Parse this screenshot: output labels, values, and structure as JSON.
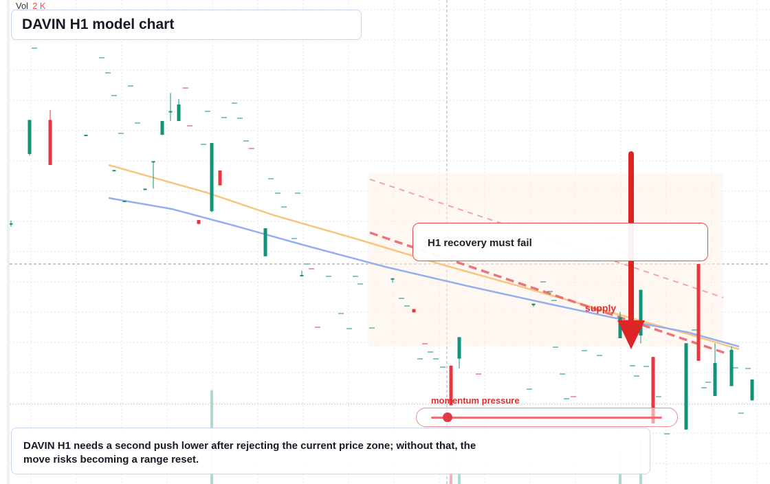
{
  "title": "DAVIN H1 model chart",
  "volume_legend": {
    "label": "Vol",
    "value": "2 K"
  },
  "callout": {
    "text": "H1 recovery must fail"
  },
  "supply_label": "supply",
  "momentum": {
    "label": "momentum pressure",
    "level": 0.06
  },
  "note": "DAVIN H1 needs a second push lower after rejecting the current price zone; without that, the move risks becoming a range reset.",
  "colors": {
    "up": "#11927a",
    "down": "#e8363f",
    "ma_fast": "#f7c57d",
    "ma_slow": "#94aef0",
    "trend": "#e8676d",
    "arrow": "#dc2626",
    "zone": "#fdf1e8"
  },
  "icons": {
    "down_arrow": "down-arrow-icon"
  },
  "chart_data": {
    "type": "candlestick",
    "title": "DAVIN H1 model chart",
    "xlabel": "",
    "ylabel": "",
    "grid": true,
    "series_colors": {
      "up": "#11927a",
      "down": "#e8363f"
    },
    "candles": [
      {
        "x": 16,
        "o": 47.3,
        "h": 47.9,
        "l": 46.8,
        "c": 47.4,
        "vol": 0
      },
      {
        "x": 43,
        "o": 60.0,
        "h": 66.2,
        "l": 59.7,
        "c": 66.2,
        "vol": 0
      },
      {
        "x": 73,
        "o": 66.2,
        "h": 68.0,
        "l": 58.0,
        "c": 58.0,
        "vol": 0
      },
      {
        "x": 125,
        "o": 63.5,
        "h": 63.5,
        "l": 63.5,
        "c": 63.5,
        "vol": 0
      },
      {
        "x": 166,
        "o": 57.1,
        "h": 57.1,
        "l": 57.1,
        "c": 57.1,
        "vol": 0
      },
      {
        "x": 181,
        "o": 51.5,
        "h": 51.5,
        "l": 51.5,
        "c": 51.5,
        "vol": 0
      },
      {
        "x": 211,
        "o": 53.7,
        "h": 53.7,
        "l": 53.7,
        "c": 53.7,
        "vol": 0
      },
      {
        "x": 223,
        "o": 58.5,
        "h": 58.6,
        "l": 53.7,
        "c": 58.7,
        "vol": 0
      },
      {
        "x": 236,
        "o": 63.5,
        "h": 66.0,
        "l": 63.4,
        "c": 66.0,
        "vol": 0
      },
      {
        "x": 248,
        "o": 67.6,
        "h": 71.1,
        "l": 66.0,
        "c": 67.8,
        "vol": 0
      },
      {
        "x": 260,
        "o": 66.0,
        "h": 70.0,
        "l": 66.0,
        "c": 69.0,
        "vol": 0
      },
      {
        "x": 289,
        "o": 48.0,
        "h": 48.0,
        "l": 47.2,
        "c": 47.3,
        "vol": 0
      },
      {
        "x": 308,
        "o": 49.6,
        "h": 62.0,
        "l": 49.4,
        "c": 62.0,
        "vol": 0.35
      },
      {
        "x": 320,
        "o": 57.0,
        "h": 57.0,
        "l": 54.3,
        "c": 54.3,
        "vol": 0
      },
      {
        "x": 386,
        "o": 41.4,
        "h": 46.5,
        "l": 41.4,
        "c": 46.5,
        "vol": 0
      },
      {
        "x": 439,
        "o": 38.0,
        "h": 38.8,
        "l": 37.9,
        "c": 38.0,
        "vol": 0
      },
      {
        "x": 571,
        "o": 37.4,
        "h": 37.4,
        "l": 36.6,
        "c": 37.4,
        "vol": 0
      },
      {
        "x": 602,
        "o": 31.8,
        "h": 31.8,
        "l": 31.2,
        "c": 31.2,
        "vol": 0
      },
      {
        "x": 656,
        "o": 21.5,
        "h": 21.6,
        "l": 14.4,
        "c": 14.3,
        "vol": 0.2
      },
      {
        "x": 668,
        "o": 22.8,
        "h": 26.7,
        "l": 21.0,
        "c": 26.7,
        "vol": 0.07
      },
      {
        "x": 776,
        "o": 32.5,
        "h": 32.5,
        "l": 32.2,
        "c": 32.8,
        "vol": 0
      },
      {
        "x": 902,
        "o": 26.5,
        "h": 31.3,
        "l": 26.5,
        "c": 30.3,
        "vol": 0.12
      },
      {
        "x": 932,
        "o": 27.0,
        "h": 35.3,
        "l": 25.6,
        "c": 35.3,
        "vol": 0.16
      },
      {
        "x": 950,
        "o": 23.1,
        "h": 23.1,
        "l": 11.0,
        "c": 11.0,
        "vol": 0
      },
      {
        "x": 998,
        "o": 9.9,
        "h": 25.6,
        "l": 9.9,
        "c": 25.6,
        "vol": 0
      },
      {
        "x": 1016,
        "o": 40.0,
        "h": 40.0,
        "l": 22.4,
        "c": 22.4,
        "vol": 0
      },
      {
        "x": 1040,
        "o": 16.0,
        "h": 25.6,
        "l": 16.0,
        "c": 22.0,
        "vol": 0
      },
      {
        "x": 1064,
        "o": 17.8,
        "h": 25.0,
        "l": 17.8,
        "c": 24.4,
        "vol": 0
      },
      {
        "x": 1094,
        "o": 15.2,
        "h": 19.0,
        "l": 15.2,
        "c": 19.0,
        "vol": 0
      }
    ],
    "moving_averages": [
      {
        "points": [
          [
            158,
            58.0
          ],
          [
            300,
            53.0
          ],
          [
            400,
            48.8
          ],
          [
            520,
            44.5
          ],
          [
            640,
            40.0
          ],
          [
            760,
            35.8
          ],
          [
            880,
            31.5
          ],
          [
            1000,
            27.3
          ],
          [
            1075,
            24.5
          ]
        ]
      },
      {
        "points": [
          [
            158,
            52.0
          ],
          [
            250,
            50.0
          ],
          [
            340,
            47.0
          ],
          [
            440,
            43.5
          ],
          [
            560,
            39.5
          ],
          [
            680,
            36.0
          ],
          [
            800,
            32.7
          ],
          [
            920,
            29.5
          ],
          [
            1000,
            27.6
          ],
          [
            1075,
            25.0
          ]
        ]
      }
    ],
    "trendlines": [
      {
        "points": [
          [
            538,
            55.4
          ],
          [
            1052,
            33.9
          ]
        ],
        "style": "dashed"
      },
      {
        "points": [
          [
            538,
            45.7
          ],
          [
            1055,
            23.8
          ]
        ],
        "style": "dashed-bold"
      }
    ],
    "zone": {
      "x": [
        535,
        1052
      ],
      "y": [
        25.0,
        56.5
      ]
    },
    "reference_line": {
      "y": 40.0
    },
    "signal_arrow": {
      "x": 918,
      "from": 60.0,
      "to": 24.5
    },
    "ylim": [
      0,
      80
    ],
    "xlim": [
      0,
      1120
    ]
  }
}
